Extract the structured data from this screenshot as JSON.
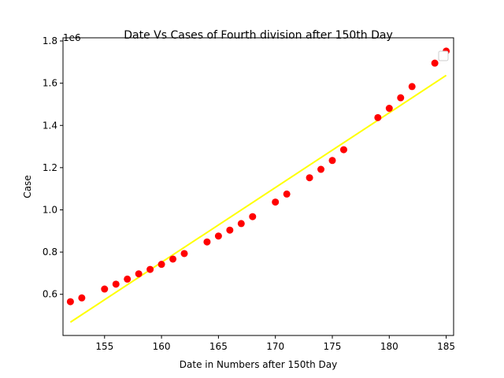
{
  "chart_data": {
    "type": "scatter",
    "title": "Date Vs Cases of Fourth division after 150th Day",
    "xlabel": "Date in Numbers after 150th Day",
    "ylabel": "Case",
    "y_offset_label": "1e6",
    "xlim": [
      151.35,
      185.65
    ],
    "ylim": [
      0.405,
      1.815
    ],
    "x_ticks": [
      155,
      160,
      165,
      170,
      175,
      180,
      185
    ],
    "y_ticks": [
      0.6,
      0.8,
      1.0,
      1.2,
      1.4,
      1.6,
      1.8
    ],
    "y_tick_labels": [
      "0.6",
      "0.8",
      "1.0",
      "1.2",
      "1.4",
      "1.6",
      "1.8"
    ],
    "grid": false,
    "legend": {
      "placement": "top-right",
      "entries": []
    },
    "colors": {
      "points": "#ff0000",
      "fit_line": "#ffff00"
    },
    "series": [
      {
        "kind": "points",
        "x": [
          152,
          153,
          155,
          156,
          157,
          158,
          159,
          160,
          161,
          162,
          164,
          165,
          166,
          167,
          168,
          170,
          171,
          173,
          174,
          175,
          176,
          179,
          180,
          181,
          182,
          184,
          185
        ],
        "y": [
          0.565,
          0.583,
          0.625,
          0.648,
          0.672,
          0.697,
          0.718,
          0.742,
          0.767,
          0.793,
          0.848,
          0.876,
          0.904,
          0.935,
          0.968,
          1.037,
          1.075,
          1.152,
          1.192,
          1.234,
          1.285,
          1.437,
          1.481,
          1.531,
          1.584,
          1.695,
          1.752
        ]
      },
      {
        "kind": "fit_line",
        "x": [
          152,
          185
        ],
        "y": [
          0.468,
          1.637
        ]
      }
    ]
  }
}
